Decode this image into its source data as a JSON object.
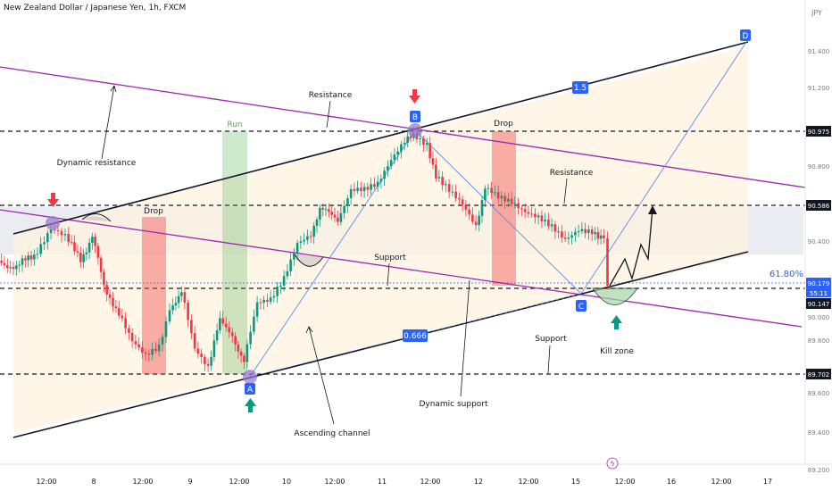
{
  "header": {
    "symbol": "New Zealand Dollar / Japanese Yen, 1h, FXCM",
    "currency": "JPY"
  },
  "axis": {
    "y_ticks": [
      "91.400",
      "91.200",
      "90.975",
      "90.800",
      "90.586",
      "90.400",
      "90.179",
      "90.147",
      "90.000",
      "89.800",
      "89.702",
      "89.600",
      "89.400",
      "89.200"
    ],
    "y_label_pct": "61.80%",
    "countdown": "55:11",
    "x_ticks": [
      "12:00",
      "8",
      "12:00",
      "9",
      "12:00",
      "10",
      "12:00",
      "11",
      "12:00",
      "12",
      "12:00",
      "15",
      "12:00",
      "16",
      "12:00",
      "17"
    ]
  },
  "annotations": {
    "resistance_top": "Resistance",
    "dynamic_resistance": "Dynamic resistance",
    "run": "Run",
    "drop_left": "Drop",
    "drop_right": "Drop",
    "resistance_right": "Resistance",
    "support_mid": "Support",
    "support_low": "Support",
    "dynamic_support": "Dynamic support",
    "ascending_channel": "Ascending channel",
    "kill_zone": "Kill zone",
    "ratio_high": "1.5",
    "ratio_low": "0.666",
    "point_a": "A",
    "point_b": "B",
    "point_c": "C",
    "point_d": "D"
  },
  "colors": {
    "up": "#089981",
    "down": "#f23645",
    "channel": "#131722",
    "dynamic": "#9c27b0",
    "label_blue": "#2962ff",
    "run_green": "#4caf50",
    "drop_red": "#ef5350"
  }
}
